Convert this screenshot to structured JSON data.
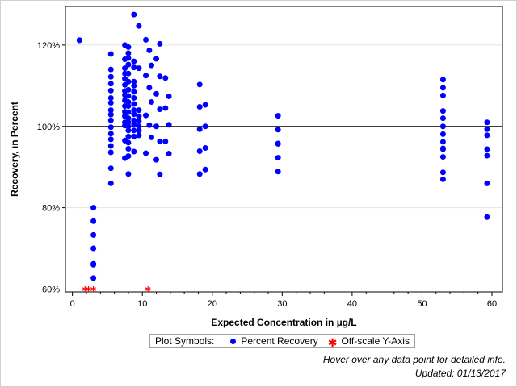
{
  "chart_data": {
    "type": "scatter",
    "xlabel": "Expected Concentration in µg/L",
    "ylabel": "Recovery, in Percent",
    "xlim": [
      -1,
      61.5
    ],
    "ylim": [
      59.3,
      129.5
    ],
    "x_ticks": [
      0,
      10,
      20,
      30,
      40,
      50,
      60
    ],
    "y_ticks": [
      60,
      80,
      100,
      120
    ],
    "y_tick_labels": [
      "60%",
      "80%",
      "100%",
      "120%"
    ],
    "reference_line_y": 100,
    "grid": "horizontal",
    "legend_position": "bottom",
    "colors": {
      "recovery": "#0000ff",
      "offscale": "#ff0000",
      "reference": "#000000"
    },
    "series": [
      {
        "name": "Percent Recovery",
        "marker": "filled-circle",
        "points": [
          [
            1.0,
            121.2
          ],
          [
            1.0,
            121.2
          ],
          [
            3.0,
            80.0
          ],
          [
            3.0,
            76.7
          ],
          [
            3.0,
            73.3
          ],
          [
            3.0,
            70.0
          ],
          [
            3.0,
            66.2
          ],
          [
            3.0,
            66.0
          ],
          [
            3.0,
            62.7
          ],
          [
            5.5,
            117.8
          ],
          [
            5.5,
            114.0
          ],
          [
            5.5,
            112.2
          ],
          [
            5.5,
            110.5
          ],
          [
            5.5,
            108.8
          ],
          [
            5.5,
            107.0
          ],
          [
            5.5,
            105.8
          ],
          [
            5.5,
            104.0
          ],
          [
            5.5,
            102.9
          ],
          [
            5.5,
            101.5
          ],
          [
            5.5,
            99.8
          ],
          [
            5.5,
            98.2
          ],
          [
            5.5,
            96.8
          ],
          [
            5.5,
            95.2
          ],
          [
            5.5,
            93.6
          ],
          [
            5.5,
            89.7
          ],
          [
            5.5,
            86.0
          ],
          [
            7.5,
            120.0
          ],
          [
            7.5,
            116.5
          ],
          [
            7.5,
            114.3
          ],
          [
            7.5,
            113.0
          ],
          [
            7.5,
            111.7
          ],
          [
            7.5,
            110.2
          ],
          [
            7.5,
            108.7
          ],
          [
            7.5,
            107.7
          ],
          [
            7.5,
            106.4
          ],
          [
            7.5,
            105.0
          ],
          [
            7.5,
            103.6
          ],
          [
            7.5,
            102.5
          ],
          [
            7.5,
            101.0
          ],
          [
            7.5,
            100.2
          ],
          [
            7.5,
            96.5
          ],
          [
            7.5,
            92.2
          ],
          [
            8.0,
            119.5
          ],
          [
            8.0,
            118.0
          ],
          [
            8.0,
            116.8
          ],
          [
            8.0,
            115.2
          ],
          [
            8.0,
            113.0
          ],
          [
            8.0,
            111.0
          ],
          [
            8.0,
            109.0
          ],
          [
            8.0,
            107.5
          ],
          [
            8.0,
            106.0
          ],
          [
            8.0,
            105.0
          ],
          [
            8.0,
            103.5
          ],
          [
            8.0,
            102.0
          ],
          [
            8.0,
            101.0
          ],
          [
            8.0,
            100.0
          ],
          [
            8.0,
            99.0
          ],
          [
            8.0,
            97.5
          ],
          [
            8.0,
            96.0
          ],
          [
            8.0,
            94.5
          ],
          [
            8.0,
            92.7
          ],
          [
            8.0,
            88.3
          ],
          [
            8.8,
            127.5
          ],
          [
            8.8,
            116.0
          ],
          [
            8.8,
            114.5
          ],
          [
            8.8,
            111.0
          ],
          [
            8.8,
            110.0
          ],
          [
            8.8,
            108.5
          ],
          [
            8.8,
            107.0
          ],
          [
            8.8,
            105.5
          ],
          [
            8.8,
            104.0
          ],
          [
            8.8,
            103.0
          ],
          [
            8.8,
            101.5
          ],
          [
            8.8,
            100.5
          ],
          [
            8.8,
            99.0
          ],
          [
            8.8,
            97.5
          ],
          [
            8.8,
            93.8
          ],
          [
            9.5,
            124.7
          ],
          [
            9.5,
            114.3
          ],
          [
            9.5,
            104.0
          ],
          [
            9.5,
            102.5
          ],
          [
            9.5,
            101.3
          ],
          [
            9.5,
            100.0
          ],
          [
            9.5,
            99.0
          ],
          [
            9.5,
            97.8
          ],
          [
            10.5,
            121.3
          ],
          [
            10.5,
            112.5
          ],
          [
            10.5,
            102.7
          ],
          [
            10.5,
            93.4
          ],
          [
            11.0,
            118.7
          ],
          [
            11.0,
            109.5
          ],
          [
            11.0,
            100.3
          ],
          [
            11.3,
            115.0
          ],
          [
            11.3,
            106.0
          ],
          [
            11.3,
            97.3
          ],
          [
            12.0,
            116.6
          ],
          [
            12.0,
            108.0
          ],
          [
            12.0,
            100.0
          ],
          [
            12.0,
            91.8
          ],
          [
            12.5,
            120.3
          ],
          [
            12.5,
            112.3
          ],
          [
            12.5,
            104.2
          ],
          [
            12.5,
            96.3
          ],
          [
            12.5,
            88.2
          ],
          [
            13.3,
            111.9
          ],
          [
            13.3,
            104.5
          ],
          [
            13.3,
            96.3
          ],
          [
            13.8,
            107.4
          ],
          [
            13.8,
            100.4
          ],
          [
            13.8,
            93.3
          ],
          [
            18.2,
            110.3
          ],
          [
            18.2,
            104.8
          ],
          [
            18.2,
            99.3
          ],
          [
            18.2,
            93.9
          ],
          [
            18.2,
            88.3
          ],
          [
            19.0,
            105.3
          ],
          [
            19.0,
            100.0
          ],
          [
            19.0,
            94.7
          ],
          [
            19.0,
            89.4
          ],
          [
            29.4,
            102.6
          ],
          [
            29.4,
            99.2
          ],
          [
            29.4,
            95.8
          ],
          [
            29.4,
            95.7
          ],
          [
            29.4,
            92.3
          ],
          [
            29.4,
            88.9
          ],
          [
            53.0,
            111.5
          ],
          [
            53.0,
            109.5
          ],
          [
            53.0,
            107.6
          ],
          [
            53.0,
            103.8
          ],
          [
            53.0,
            102.0
          ],
          [
            53.0,
            100.0
          ],
          [
            53.0,
            98.1
          ],
          [
            53.0,
            96.2
          ],
          [
            53.0,
            94.6
          ],
          [
            53.0,
            94.4
          ],
          [
            53.0,
            92.5
          ],
          [
            53.0,
            88.7
          ],
          [
            53.0,
            87.0
          ],
          [
            59.3,
            101.0
          ],
          [
            59.3,
            99.3
          ],
          [
            59.3,
            97.8
          ],
          [
            59.3,
            94.4
          ],
          [
            59.3,
            92.8
          ],
          [
            59.3,
            86.0
          ],
          [
            59.3,
            77.7
          ]
        ]
      },
      {
        "name": "Off-scale Y-Axis",
        "marker": "red-asterisk",
        "points": [
          [
            1.8,
            60
          ],
          [
            2.3,
            60
          ],
          [
            3.0,
            60
          ],
          [
            10.8,
            60
          ]
        ]
      }
    ]
  },
  "legend": {
    "title": "Plot Symbols:",
    "items": [
      "Percent Recovery",
      "Off-scale Y-Axis"
    ]
  },
  "notes": {
    "hover": "Hover over any data point for detailed info.",
    "updated": "Updated: 01/13/2017"
  }
}
